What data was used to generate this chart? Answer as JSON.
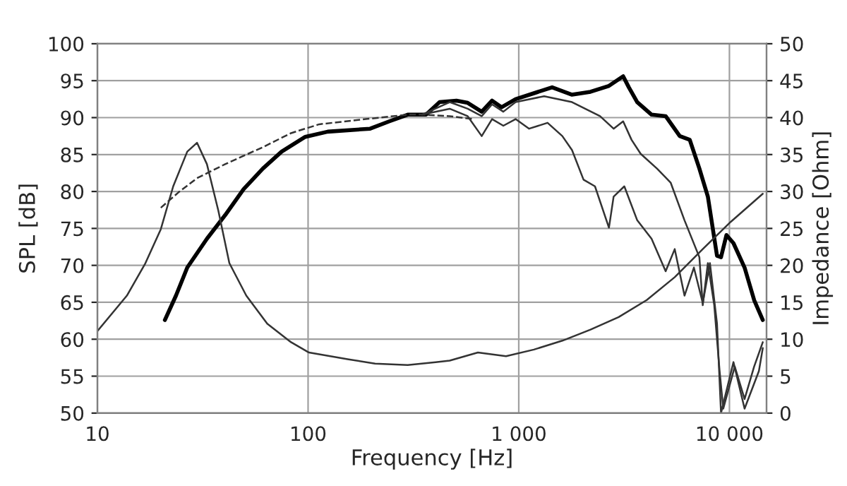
{
  "chart_data": {
    "type": "line",
    "xlabel": "Frequency [Hz]",
    "ylabel": "SPL [dB]",
    "y2label": "Impedance [Ohm]",
    "log": "x",
    "grid": true,
    "legend": false,
    "xlim": [
      10,
      15000
    ],
    "xticks": [
      10,
      100,
      {
        "value": 1000,
        "label": "1 000"
      },
      {
        "value": 10000,
        "label": "10 000"
      }
    ],
    "ylim": [
      50,
      100
    ],
    "yticks": [
      50,
      55,
      60,
      65,
      70,
      75,
      80,
      85,
      90,
      95,
      100
    ],
    "y2lim": [
      0,
      50
    ],
    "y2ticks": [
      0,
      5,
      10,
      15,
      20,
      25,
      30,
      35,
      40,
      45,
      50
    ],
    "series": [
      {
        "color": "#000000",
        "x": [
          20.9,
          23.6,
          26.7,
          33.1,
          40.4,
          49.4,
          61,
          74.9,
          97,
          124,
          197,
          243,
          297,
          363,
          421,
          506,
          572,
          667,
          747,
          828,
          966,
          1180,
          1440,
          1790,
          2190,
          2680,
          3130,
          3330,
          3650,
          4270,
          4980,
          5810,
          6480,
          7200,
          7900,
          8730,
          9120,
          9680,
          10450,
          11800,
          13100,
          14400
        ],
        "values": [
          62.6,
          65.9,
          69.7,
          73.6,
          76.8,
          80.3,
          83.1,
          85.4,
          87.4,
          88.1,
          88.5,
          89.5,
          90.4,
          90.4,
          92.1,
          92.3,
          92.0,
          90.8,
          92.3,
          91.4,
          92.5,
          93.3,
          94.1,
          93.1,
          93.5,
          94.3,
          95.6,
          94.1,
          92.1,
          90.4,
          90.2,
          87.5,
          87.0,
          83.1,
          79.3,
          71.3,
          71.1,
          74.1,
          73.0,
          69.7,
          65.3,
          62.6
        ]
      },
      {
        "color": "#333333",
        "x": [
          347,
          470,
          572,
          667,
          747,
          845,
          966,
          1320,
          1790,
          2430,
          2820,
          3130,
          3430,
          3790,
          4530,
          5260,
          6120,
          7200,
          7470,
          7900,
          8470,
          8980,
          9350,
          10600,
          11800,
          13100,
          14400
        ],
        "values": [
          90.4,
          92.1,
          91.2,
          90.2,
          91.8,
          90.8,
          92.1,
          92.9,
          92.1,
          90.2,
          88.5,
          89.5,
          87.0,
          85.1,
          83.1,
          81.2,
          76.1,
          71.1,
          64.6,
          70.3,
          64.6,
          55.7,
          50.6,
          56.3,
          51.9,
          56.3,
          59.6
        ]
      },
      {
        "color": "#333333",
        "x": [
          347,
          470,
          572,
          667,
          747,
          845,
          966,
          1120,
          1370,
          1610,
          1790,
          2030,
          2300,
          2680,
          2820,
          3170,
          3650,
          4270,
          4980,
          5500,
          6120,
          6780,
          7470,
          8080,
          8730,
          9120,
          10450,
          11800,
          13800,
          14400
        ],
        "values": [
          90.4,
          91.2,
          90.2,
          87.5,
          89.8,
          88.9,
          89.8,
          88.5,
          89.3,
          87.5,
          85.6,
          81.6,
          80.7,
          75.1,
          79.3,
          80.7,
          76.1,
          73.6,
          69.2,
          72.2,
          65.9,
          69.7,
          64.9,
          70.3,
          62.1,
          50.0,
          56.9,
          50.6,
          55.7,
          58.8
        ]
      },
      {
        "color": "#333333",
        "line_style": "dashed",
        "x": [
          20,
          24.3,
          29.7,
          40.4,
          61,
          83,
          113,
          188,
          297,
          347,
          470,
          610
        ],
        "values": [
          77.8,
          79.9,
          81.8,
          83.7,
          86.0,
          87.9,
          89.1,
          89.8,
          90.4,
          90.4,
          90.2,
          89.8
        ]
      },
      {
        "color": "#333333",
        "axis": "y2",
        "x": [
          10,
          13.8,
          16.9,
          20,
          22.9,
          26.7,
          29.7,
          33.1,
          37.5,
          42.3,
          50.9,
          64,
          83,
          101,
          154,
          208,
          297,
          403,
          470,
          640,
          870,
          1180,
          1610,
          2190,
          2980,
          4050,
          5500,
          7470,
          10150,
          14400
        ],
        "values": [
          11.1,
          15.9,
          20.3,
          24.9,
          30.7,
          35.4,
          36.6,
          33.7,
          27.4,
          20.3,
          15.9,
          12.1,
          9.6,
          8.2,
          7.3,
          6.7,
          6.5,
          6.9,
          7.1,
          8.2,
          7.7,
          8.6,
          9.8,
          11.3,
          13.0,
          15.3,
          18.4,
          22.2,
          25.9,
          29.7
        ]
      }
    ]
  }
}
